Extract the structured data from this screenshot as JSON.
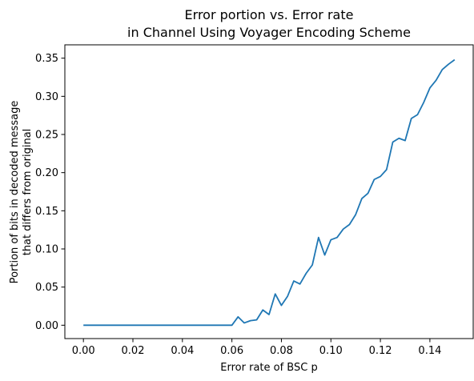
{
  "chart_data": {
    "type": "line",
    "title": [
      "Error portion vs. Error rate",
      "in Channel Using Voyager Encoding Scheme"
    ],
    "xlabel": "Error rate of BSC p",
    "ylabel": [
      "Portion of bits in decoded message",
      "that differs from original"
    ],
    "xlim": [
      -0.0075,
      0.1575
    ],
    "ylim": [
      -0.0175,
      0.3675
    ],
    "xticks": [
      0.0,
      0.02,
      0.04,
      0.06,
      0.08,
      0.1,
      0.12,
      0.14
    ],
    "xtick_labels": [
      "0.00",
      "0.02",
      "0.04",
      "0.06",
      "0.08",
      "0.10",
      "0.12",
      "0.14"
    ],
    "yticks": [
      0.0,
      0.05,
      0.1,
      0.15,
      0.2,
      0.25,
      0.3,
      0.35
    ],
    "ytick_labels": [
      "0.00",
      "0.05",
      "0.10",
      "0.15",
      "0.20",
      "0.25",
      "0.30",
      "0.35"
    ],
    "grid": false,
    "series": [
      {
        "color": "#1f77b4",
        "x": [
          0.0,
          0.0025,
          0.005,
          0.0075,
          0.01,
          0.0125,
          0.015,
          0.0175,
          0.02,
          0.0225,
          0.025,
          0.0275,
          0.03,
          0.0325,
          0.035,
          0.0375,
          0.04,
          0.0425,
          0.045,
          0.0475,
          0.05,
          0.0525,
          0.055,
          0.0575,
          0.06,
          0.0625,
          0.065,
          0.0675,
          0.07,
          0.0725,
          0.075,
          0.0775,
          0.08,
          0.0825,
          0.085,
          0.0875,
          0.09,
          0.0925,
          0.095,
          0.0975,
          0.1,
          0.1025,
          0.105,
          0.1075,
          0.11,
          0.1125,
          0.115,
          0.1175,
          0.12,
          0.1225,
          0.125,
          0.1275,
          0.13,
          0.1325,
          0.135,
          0.1375,
          0.14,
          0.1425,
          0.145,
          0.1475,
          0.15
        ],
        "y": [
          0.0,
          0.0,
          0.0,
          0.0,
          0.0,
          0.0,
          0.0,
          0.0,
          0.0,
          0.0,
          0.0,
          0.0,
          0.0,
          0.0,
          0.0,
          0.0,
          0.0,
          0.0,
          0.0,
          0.0,
          0.0,
          0.0,
          0.0,
          0.0,
          0.0,
          0.011,
          0.003,
          0.006,
          0.007,
          0.02,
          0.014,
          0.041,
          0.026,
          0.038,
          0.058,
          0.054,
          0.068,
          0.079,
          0.115,
          0.092,
          0.112,
          0.115,
          0.126,
          0.132,
          0.145,
          0.166,
          0.173,
          0.191,
          0.195,
          0.204,
          0.24,
          0.245,
          0.242,
          0.271,
          0.276,
          0.292,
          0.311,
          0.321,
          0.335,
          0.342,
          0.348
        ]
      }
    ]
  }
}
